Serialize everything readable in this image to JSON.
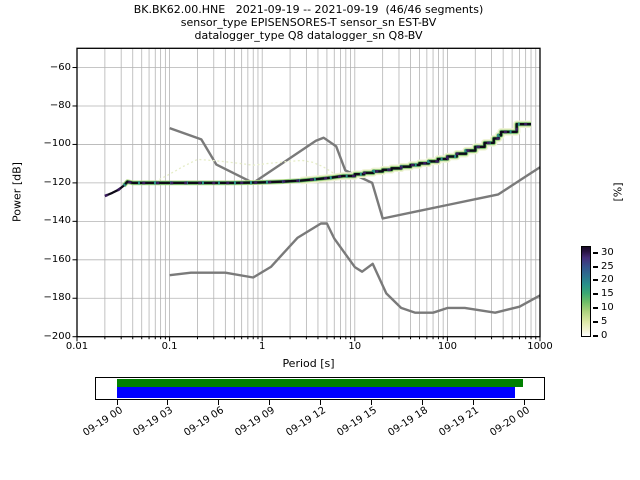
{
  "header": {
    "title": "BK.BK62.00.HNE   2021-09-19 -- 2021-09-19  (46/46 segments)",
    "subtitle1": "sensor_type EPISENSORES-T sensor_sn EST-BV",
    "subtitle2": "datalogger_type Q8 datalogger_sn Q8-BV"
  },
  "chart_data": {
    "type": "line",
    "title": "BK.BK62.00.HNE   2021-09-19 -- 2021-09-19  (46/46 segments)",
    "xlabel": "Period [s]",
    "ylabel": "Power [dB]",
    "x_scale": "log",
    "xlim": [
      0.01,
      1000
    ],
    "ylim": [
      -200,
      -50
    ],
    "x_ticks": [
      0.01,
      0.1,
      1,
      10,
      100,
      1000
    ],
    "x_tick_labels": [
      "0.01",
      "0.1",
      "1",
      "10",
      "100",
      "1000"
    ],
    "y_ticks": [
      -60,
      -80,
      -100,
      -120,
      -140,
      -160,
      -180,
      -200
    ],
    "grid": true,
    "grid_color": "#b3b3b3",
    "series": [
      {
        "name": "peterson-high-noise-model",
        "color": "#7a7a7a",
        "width": 2.4,
        "style": "solid",
        "points": [
          [
            0.1,
            -91.5
          ],
          [
            0.22,
            -97.4
          ],
          [
            0.32,
            -110.5
          ],
          [
            0.8,
            -120.0
          ],
          [
            3.8,
            -98.1
          ],
          [
            4.6,
            -96.5
          ],
          [
            6.3,
            -101.0
          ],
          [
            7.9,
            -113.5
          ],
          [
            15.4,
            -120.0
          ],
          [
            20,
            -138.5
          ],
          [
            50,
            -134.5
          ],
          [
            100,
            -131.5
          ],
          [
            200,
            -128.5
          ],
          [
            354.8,
            -126.0
          ],
          [
            500,
            -121.3
          ],
          [
            700,
            -116.7
          ],
          [
            1000,
            -111.9
          ]
        ]
      },
      {
        "name": "peterson-low-noise-model",
        "color": "#7a7a7a",
        "width": 2.4,
        "style": "solid",
        "points": [
          [
            0.1,
            -168.0
          ],
          [
            0.17,
            -166.7
          ],
          [
            0.4,
            -166.7
          ],
          [
            0.8,
            -169.2
          ],
          [
            1.24,
            -163.7
          ],
          [
            2.4,
            -148.6
          ],
          [
            4.3,
            -141.1
          ],
          [
            5.0,
            -141.1
          ],
          [
            6.0,
            -149.0
          ],
          [
            10,
            -163.8
          ],
          [
            12,
            -166.2
          ],
          [
            15.6,
            -162.1
          ],
          [
            21.9,
            -177.5
          ],
          [
            31.6,
            -185.0
          ],
          [
            45,
            -187.5
          ],
          [
            70,
            -187.5
          ],
          [
            101,
            -185.0
          ],
          [
            154,
            -185.0
          ],
          [
            328,
            -187.5
          ],
          [
            600,
            -184.4
          ],
          [
            1000,
            -178.5
          ]
        ]
      },
      {
        "name": "ppsd-low-probability-spread",
        "color": "#e6edc8",
        "width": 1.3,
        "style": "dotted",
        "points": [
          [
            0.07,
            -119.3
          ],
          [
            0.1,
            -115.5
          ],
          [
            0.14,
            -111.5
          ],
          [
            0.2,
            -107.8
          ],
          [
            0.28,
            -108.3
          ],
          [
            0.4,
            -109.0
          ],
          [
            0.6,
            -110.0
          ],
          [
            0.8,
            -110.8
          ],
          [
            1.2,
            -109.8
          ],
          [
            1.8,
            -109.0
          ],
          [
            2.7,
            -108.3
          ],
          [
            3.5,
            -109.3
          ],
          [
            4.5,
            -111.5
          ],
          [
            5.5,
            -114.0
          ],
          [
            6.5,
            -116.3
          ],
          [
            8.0,
            -118.5
          ]
        ]
      },
      {
        "name": "ppsd-mode-band",
        "style": "band",
        "step_above_period": 9.5,
        "points": [
          [
            0.02,
            -126.8
          ],
          [
            0.024,
            -125.2
          ],
          [
            0.028,
            -123.6
          ],
          [
            0.032,
            -121.4
          ],
          [
            0.035,
            -119.4
          ],
          [
            0.04,
            -120.0
          ],
          [
            0.07,
            -120.0
          ],
          [
            0.12,
            -120.0
          ],
          [
            0.25,
            -120.0
          ],
          [
            0.5,
            -120.0
          ],
          [
            0.9,
            -119.8
          ],
          [
            1.6,
            -119.4
          ],
          [
            2.6,
            -118.8
          ],
          [
            4.0,
            -118.0
          ],
          [
            5.5,
            -117.3
          ],
          [
            7.5,
            -116.4
          ],
          [
            10,
            -115.5
          ],
          [
            12.6,
            -114.8
          ],
          [
            15.9,
            -114.0
          ],
          [
            20,
            -113.2
          ],
          [
            25,
            -112.4
          ],
          [
            31.7,
            -111.6
          ],
          [
            40,
            -110.7
          ],
          [
            50,
            -109.8
          ],
          [
            63,
            -108.8
          ],
          [
            79,
            -107.6
          ],
          [
            100,
            -106.3
          ],
          [
            126,
            -104.8
          ],
          [
            159,
            -103.2
          ],
          [
            200,
            -101.3
          ],
          [
            252,
            -99.2
          ],
          [
            317,
            -96.9
          ],
          [
            356,
            -95.3
          ],
          [
            380,
            -93.5
          ],
          [
            520,
            -93.5
          ],
          [
            560,
            -89.5
          ],
          [
            800,
            -89.5
          ]
        ],
        "layers": [
          {
            "color": "#eef2d4",
            "width": 7.5,
            "min_period": 2.5,
            "dash": ""
          },
          {
            "color": "#b7da8c",
            "width": 4.8,
            "min_period": 0.03,
            "dash": ""
          },
          {
            "color": "#3f9e4f",
            "width": 3.2,
            "min_period": 0.03,
            "dash": ""
          },
          {
            "color": "#0d0a18",
            "width": 2.3,
            "min_period": 0,
            "dash": ""
          },
          {
            "color": "#2b8f86",
            "width": 3.2,
            "min_period": 0.03,
            "dash": "2 14"
          },
          {
            "color": "#3a1b5e",
            "width": 2.6,
            "min_period": 0,
            "dash": "3 11"
          }
        ]
      }
    ],
    "colorbar": {
      "label": "[%]",
      "ticks": [
        0,
        5,
        10,
        15,
        20,
        25,
        30
      ],
      "colors_bottom_to_top": [
        "#ffffff",
        "#f2f3d2",
        "#dde8a6",
        "#abd17c",
        "#6fbe67",
        "#3ba873",
        "#27908b",
        "#2d6f8e",
        "#35518b",
        "#442c78",
        "#291340",
        "#170a27"
      ],
      "stop_positions": [
        0,
        7,
        16,
        28,
        38,
        48,
        58,
        68,
        78,
        88,
        95,
        100
      ]
    }
  },
  "coverage": {
    "tick_labels": [
      "09-19 00",
      "09-19 03",
      "09-19 06",
      "09-19 09",
      "09-19 12",
      "09-19 15",
      "09-19 18",
      "09-19 21",
      "09-20 00"
    ],
    "bars": [
      {
        "name": "coverage-data-available",
        "color": "#008000",
        "start_frac": 0.0,
        "end_frac": 0.997
      },
      {
        "name": "coverage-data-used",
        "color": "#0000ff",
        "start_frac": 0.0,
        "end_frac": 0.977
      }
    ]
  }
}
